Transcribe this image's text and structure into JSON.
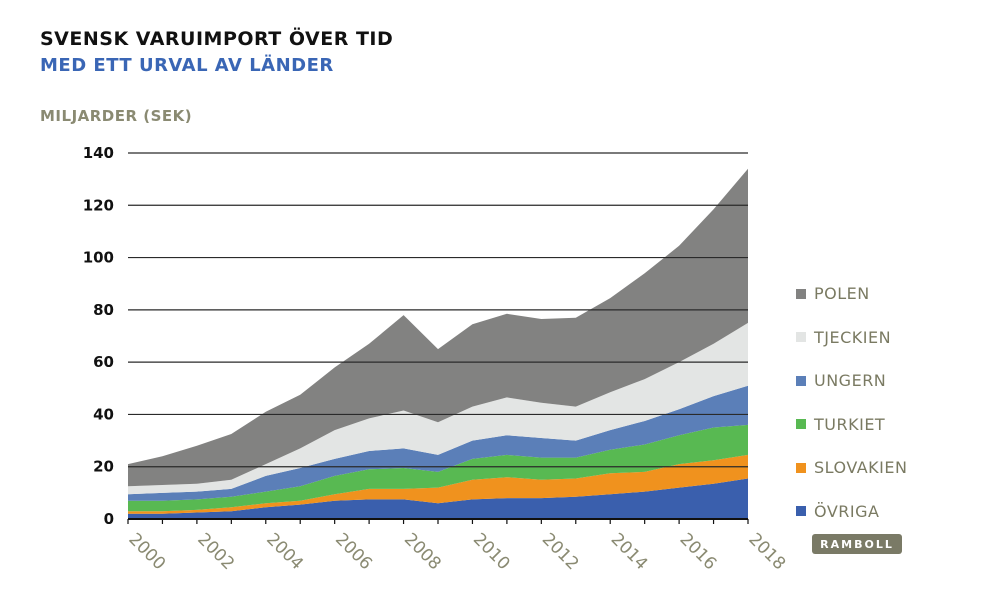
{
  "chart_data": {
    "type": "area",
    "stacked": true,
    "title": "SVENSK VARUIMPORT ÖVER TID",
    "subtitle": "MED ETT URVAL AV LÄNDER",
    "ylabel": "MILJARDER (SEK)",
    "xlabel": "",
    "ylim": [
      0,
      140
    ],
    "yticks": [
      0,
      20,
      40,
      60,
      80,
      100,
      120,
      140
    ],
    "xticks": [
      2000,
      2002,
      2004,
      2006,
      2008,
      2010,
      2012,
      2014,
      2016,
      2018
    ],
    "x": [
      2000,
      2001,
      2002,
      2003,
      2004,
      2005,
      2006,
      2007,
      2008,
      2009,
      2010,
      2011,
      2012,
      2013,
      2014,
      2015,
      2016,
      2017,
      2018
    ],
    "grid": "horizontal",
    "legend_position": "right",
    "series": [
      {
        "name": "ÖVRIGA",
        "color": "#3a5fad",
        "values": [
          2,
          2,
          2.5,
          3,
          4.5,
          5.5,
          7,
          7.5,
          7.5,
          6,
          7.5,
          8,
          8,
          8.5,
          9.5,
          10.5,
          12,
          13.5,
          15.5
        ]
      },
      {
        "name": "SLOVAKIEN",
        "color": "#f0921e",
        "values": [
          1,
          1,
          1,
          1.5,
          1.5,
          1.5,
          2.5,
          4,
          4,
          6,
          7.5,
          8,
          7,
          7,
          8,
          7.5,
          9,
          9,
          9
        ]
      },
      {
        "name": "TURKIET",
        "color": "#58b952",
        "values": [
          4,
          4,
          4,
          4,
          4.5,
          5.5,
          7,
          7.5,
          8,
          6,
          8,
          8.5,
          8.5,
          8,
          9,
          10.5,
          11,
          12.5,
          11.5
        ]
      },
      {
        "name": "UNGERN",
        "color": "#5b7fb8",
        "values": [
          2.5,
          3,
          3,
          3,
          6,
          7,
          6.5,
          7,
          7.5,
          6.5,
          7,
          7.5,
          7.5,
          6.5,
          7.5,
          9,
          10,
          12,
          15
        ]
      },
      {
        "name": "TJECKIEN",
        "color": "#e3e5e4",
        "values": [
          3,
          3,
          3,
          3.5,
          4.5,
          7.5,
          11,
          12.5,
          14.5,
          12.5,
          13,
          14.5,
          13.5,
          13,
          14.5,
          16,
          18,
          20,
          24
        ]
      },
      {
        "name": "POLEN",
        "color": "#828281",
        "values": [
          8.5,
          11,
          14.5,
          17.5,
          20,
          20.5,
          24,
          28.5,
          36.5,
          28,
          31.5,
          32,
          32,
          34,
          36,
          40.5,
          44.5,
          51.5,
          59
        ]
      }
    ]
  },
  "logo_text": "RAMBOLL"
}
